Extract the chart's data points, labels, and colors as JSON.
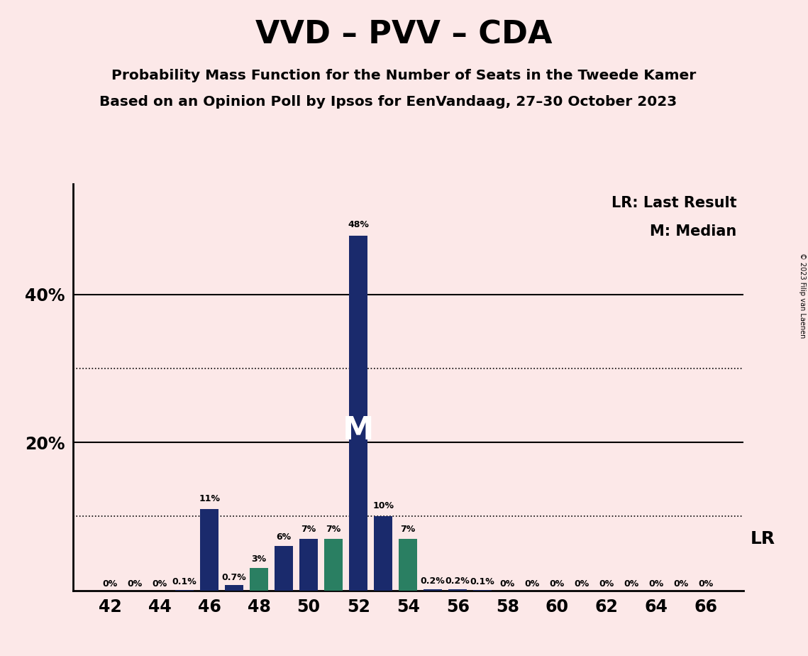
{
  "title": "VVD – PVV – CDA",
  "subtitle1": "Probability Mass Function for the Number of Seats in the Tweede Kamer",
  "subtitle2": "Based on an Opinion Poll by Ipsos for EenVandaag, 27–30 October 2023",
  "copyright": "© 2023 Filip van Laenen",
  "legend_lr": "LR: Last Result",
  "legend_m": "M: Median",
  "background_color": "#fce8e8",
  "navy_color": "#1a2a6c",
  "teal_color": "#2a7f62",
  "median_label": "M",
  "lr_label": "LR",
  "seats": [
    42,
    43,
    44,
    45,
    46,
    47,
    48,
    49,
    50,
    51,
    52,
    53,
    54,
    55,
    56,
    57,
    58,
    59,
    60,
    61,
    62,
    63,
    64,
    65,
    66
  ],
  "values": [
    0.0,
    0.0,
    0.0,
    0.1,
    11.0,
    0.7,
    3.0,
    6.0,
    7.0,
    7.0,
    48.0,
    10.0,
    7.0,
    0.2,
    0.2,
    0.1,
    0.0,
    0.0,
    0.0,
    0.0,
    0.0,
    0.0,
    0.0,
    0.0,
    0.0
  ],
  "bar_colors": [
    "navy",
    "navy",
    "navy",
    "navy",
    "navy",
    "navy",
    "teal",
    "navy",
    "navy",
    "teal",
    "navy",
    "navy",
    "teal",
    "navy",
    "navy",
    "navy",
    "navy",
    "navy",
    "navy",
    "navy",
    "navy",
    "navy",
    "navy",
    "navy",
    "navy"
  ],
  "bar_labels": [
    "0%",
    "0%",
    "0%",
    "0.1%",
    "11%",
    "0.7%",
    "3%",
    "6%",
    "7%",
    "7%",
    "48%",
    "10%",
    "7%",
    "0.2%",
    "0.2%",
    "0.1%",
    "0%",
    "0%",
    "0%",
    "0%",
    "0%",
    "0%",
    "0%",
    "0%",
    "0%"
  ],
  "median_seat": 52,
  "lr_seat": 54,
  "dotted_lines": [
    10,
    30
  ],
  "solid_lines": [
    20,
    40
  ],
  "ylim": [
    0,
    55
  ],
  "xlim": [
    40.5,
    67.5
  ],
  "ytick_positions": [
    20,
    40
  ],
  "ytick_labels": [
    "20%",
    "40%"
  ],
  "xtick_positions": [
    42,
    44,
    46,
    48,
    50,
    52,
    54,
    56,
    58,
    60,
    62,
    64,
    66
  ]
}
